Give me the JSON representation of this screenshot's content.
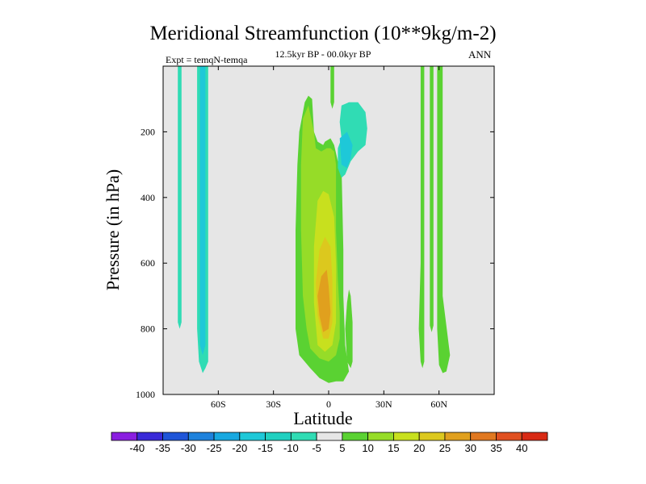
{
  "chart_data": {
    "type": "heatmap",
    "title": "Meridional Streamfunction (10**9kg/m-2)",
    "subtitle": "12.5kyr BP - 00.0kyr BP",
    "left_label": "Expt = temqN-temqa",
    "right_label": "ANN",
    "xlabel": "Latitude",
    "ylabel": "Pressure (in hPa)",
    "x_range": [
      -90,
      90
    ],
    "y_range": [
      0,
      1000
    ],
    "y_inverted": true,
    "x_ticks": [
      {
        "value": -60,
        "label": "60S"
      },
      {
        "value": -30,
        "label": "30S"
      },
      {
        "value": 0,
        "label": "0"
      },
      {
        "value": 30,
        "label": "30N"
      },
      {
        "value": 60,
        "label": "60N"
      }
    ],
    "y_ticks": [
      {
        "value": 200,
        "label": "200"
      },
      {
        "value": 400,
        "label": "400"
      },
      {
        "value": 600,
        "label": "600"
      },
      {
        "value": 800,
        "label": "800"
      },
      {
        "value": 1000,
        "label": "1000"
      }
    ],
    "background_color": "#e6e6e6",
    "colorbar": {
      "labels": [
        "-40",
        "-35",
        "-30",
        "-25",
        "-20",
        "-15",
        "-10",
        "-5",
        "5",
        "10",
        "15",
        "20",
        "25",
        "30",
        "35",
        "40"
      ],
      "colors": [
        "#8a1ee0",
        "#3a2ad8",
        "#1f55d8",
        "#1e82dc",
        "#18a8e0",
        "#1ec8d8",
        "#20d0c0",
        "#30dcb4",
        "#e6e6e6",
        "#5ad232",
        "#96dc28",
        "#c8e01e",
        "#dcc81e",
        "#e0a01e",
        "#e07820",
        "#e05020",
        "#d82a14"
      ]
    },
    "contour_regions": [
      {
        "name": "cell-80s-neg",
        "level": -10,
        "color": "#30dcb4",
        "points": [
          [
            -82,
            0
          ],
          [
            -80,
            0
          ],
          [
            -80,
            780
          ],
          [
            -81,
            800
          ],
          [
            -82,
            780
          ]
        ]
      },
      {
        "name": "cell-70s-neg-outer",
        "level": -10,
        "color": "#30dcb4",
        "points": [
          [
            -71.5,
            0
          ],
          [
            -65.5,
            0
          ],
          [
            -65.5,
            900
          ],
          [
            -67,
            920
          ],
          [
            -68.5,
            935
          ],
          [
            -70.5,
            900
          ],
          [
            -71.5,
            800
          ]
        ]
      },
      {
        "name": "cell-70s-neg-inner",
        "level": -15,
        "color": "#1ec8d8",
        "points": [
          [
            -70,
            0
          ],
          [
            -67,
            0
          ],
          [
            -67,
            850
          ],
          [
            -68.5,
            880
          ],
          [
            -70,
            850
          ]
        ]
      },
      {
        "name": "cell-eq-5",
        "level": 5,
        "color": "#5ad232",
        "points": [
          [
            -13,
            110
          ],
          [
            -11,
            90
          ],
          [
            -9,
            100
          ],
          [
            -8,
            200
          ],
          [
            -6,
            230
          ],
          [
            -3,
            240
          ],
          [
            -2,
            230
          ],
          [
            1,
            220
          ],
          [
            3,
            240
          ],
          [
            5,
            290
          ],
          [
            7,
            300
          ],
          [
            8,
            560
          ],
          [
            8,
            700
          ],
          [
            9,
            850
          ],
          [
            11,
            930
          ],
          [
            8,
            960
          ],
          [
            4,
            960
          ],
          [
            0,
            965
          ],
          [
            -5,
            950
          ],
          [
            -10,
            920
          ],
          [
            -16,
            880
          ],
          [
            -18,
            800
          ],
          [
            -18,
            500
          ],
          [
            -17,
            300
          ],
          [
            -16,
            200
          ]
        ]
      },
      {
        "name": "cell-eq-10",
        "level": 10,
        "color": "#96dc28",
        "points": [
          [
            -14,
            160
          ],
          [
            -11,
            120
          ],
          [
            -8,
            200
          ],
          [
            -7,
            250
          ],
          [
            -4,
            260
          ],
          [
            -1,
            250
          ],
          [
            1,
            250
          ],
          [
            3,
            260
          ],
          [
            4,
            300
          ],
          [
            4,
            500
          ],
          [
            5,
            650
          ],
          [
            6,
            750
          ],
          [
            6,
            830
          ],
          [
            4,
            880
          ],
          [
            0,
            900
          ],
          [
            -5,
            890
          ],
          [
            -10,
            860
          ],
          [
            -12,
            800
          ],
          [
            -14,
            700
          ],
          [
            -15,
            500
          ],
          [
            -15,
            300
          ]
        ]
      },
      {
        "name": "cell-eq-15",
        "level": 15,
        "color": "#c8e01e",
        "points": [
          [
            -6,
            410
          ],
          [
            -3,
            380
          ],
          [
            0,
            390
          ],
          [
            3,
            460
          ],
          [
            4,
            600
          ],
          [
            4,
            780
          ],
          [
            2,
            850
          ],
          [
            -2,
            870
          ],
          [
            -6,
            850
          ],
          [
            -8,
            720
          ],
          [
            -8,
            550
          ]
        ]
      },
      {
        "name": "cell-eq-20",
        "level": 20,
        "color": "#dcc81e",
        "points": [
          [
            -5,
            560
          ],
          [
            -2,
            520
          ],
          [
            1,
            550
          ],
          [
            2,
            650
          ],
          [
            2,
            780
          ],
          [
            0,
            830
          ],
          [
            -3,
            830
          ],
          [
            -6,
            760
          ],
          [
            -7,
            660
          ]
        ]
      },
      {
        "name": "cell-eq-25",
        "level": 25,
        "color": "#e0a01e",
        "points": [
          [
            -4,
            640
          ],
          [
            -1,
            620
          ],
          [
            0,
            670
          ],
          [
            1,
            750
          ],
          [
            0,
            800
          ],
          [
            -3,
            810
          ],
          [
            -5,
            760
          ],
          [
            -6,
            700
          ]
        ]
      },
      {
        "name": "cell-0n-top",
        "level": 5,
        "color": "#5ad232",
        "points": [
          [
            1,
            0
          ],
          [
            3,
            0
          ],
          [
            3,
            110
          ],
          [
            2,
            130
          ],
          [
            1,
            110
          ]
        ]
      },
      {
        "name": "cell-10n-neg",
        "level": -10,
        "color": "#30dcb4",
        "points": [
          [
            7,
            120
          ],
          [
            11,
            110
          ],
          [
            16,
            110
          ],
          [
            20,
            140
          ],
          [
            21,
            190
          ],
          [
            20,
            240
          ],
          [
            16,
            260
          ],
          [
            12,
            290
          ],
          [
            9,
            330
          ],
          [
            7,
            340
          ],
          [
            5,
            310
          ],
          [
            5,
            250
          ],
          [
            7,
            220
          ],
          [
            6,
            170
          ]
        ]
      },
      {
        "name": "cell-10n-neg-inner",
        "level": -15,
        "color": "#1ec8d8",
        "points": [
          [
            6,
            220
          ],
          [
            10,
            200
          ],
          [
            13,
            240
          ],
          [
            12,
            280
          ],
          [
            10,
            310
          ],
          [
            7,
            300
          ]
        ]
      },
      {
        "name": "cell-10n-pos",
        "level": 5,
        "color": "#5ad232",
        "points": [
          [
            11,
            680
          ],
          [
            12,
            700
          ],
          [
            13,
            780
          ],
          [
            13,
            900
          ],
          [
            12,
            920
          ],
          [
            10,
            900
          ],
          [
            9,
            800
          ],
          [
            10,
            720
          ]
        ]
      },
      {
        "name": "cell-50n-pos-a",
        "level": 5,
        "color": "#5ad232",
        "points": [
          [
            50,
            0
          ],
          [
            52,
            0
          ],
          [
            52,
            900
          ],
          [
            51,
            920
          ],
          [
            50,
            900
          ],
          [
            49,
            800
          ],
          [
            50,
            600
          ]
        ]
      },
      {
        "name": "cell-55n-pos",
        "level": 5,
        "color": "#5ad232",
        "points": [
          [
            55,
            0
          ],
          [
            57,
            0
          ],
          [
            57,
            790
          ],
          [
            56,
            810
          ],
          [
            55,
            790
          ],
          [
            55,
            400
          ]
        ]
      },
      {
        "name": "cell-60n-pos",
        "level": 5,
        "color": "#5ad232",
        "points": [
          [
            59,
            0
          ],
          [
            62,
            0
          ],
          [
            62,
            700
          ],
          [
            66,
            880
          ],
          [
            64,
            930
          ],
          [
            62,
            935
          ],
          [
            60,
            910
          ],
          [
            59,
            800
          ]
        ]
      }
    ]
  }
}
